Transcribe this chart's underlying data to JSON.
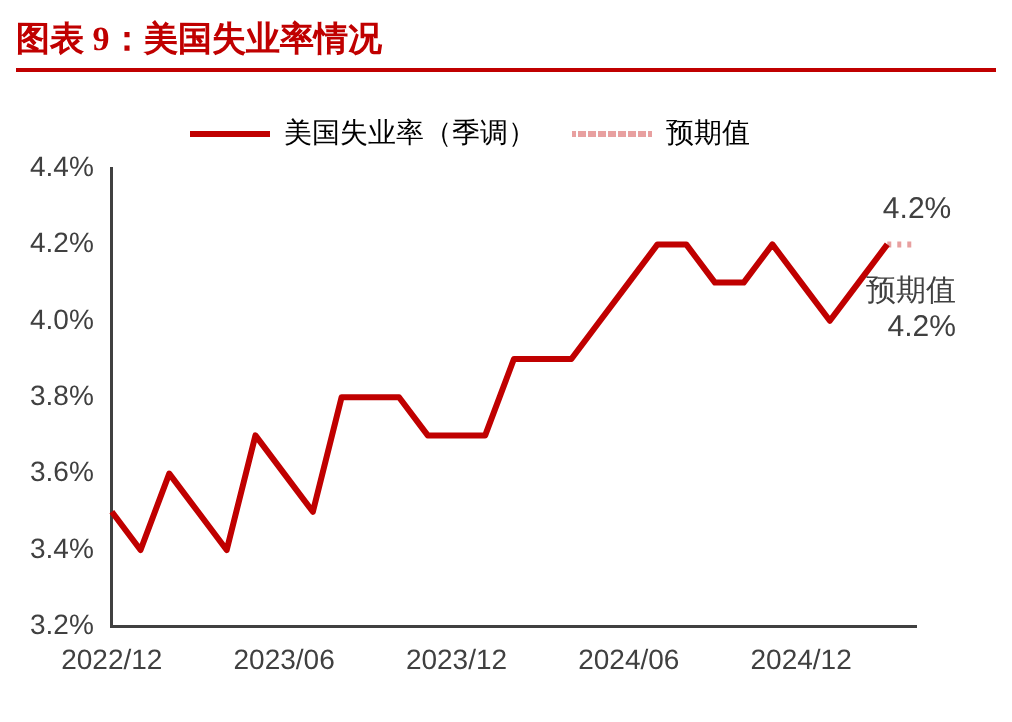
{
  "chart_data": {
    "type": "line",
    "title": "图表 9：美国失业率情况",
    "categories": [
      "2022/12",
      null,
      null,
      null,
      null,
      null,
      "2023/06",
      null,
      null,
      null,
      null,
      null,
      "2023/12",
      null,
      null,
      null,
      null,
      null,
      "2024/06",
      null,
      null,
      null,
      null,
      null,
      "2024/12",
      null,
      null,
      null,
      null
    ],
    "series": [
      {
        "name": "美国失业率（季调）",
        "color": "#c00000",
        "line_style": "solid",
        "values": [
          3.5,
          3.4,
          3.6,
          3.5,
          3.4,
          3.7,
          3.6,
          3.5,
          3.8,
          3.8,
          3.8,
          3.7,
          3.7,
          3.7,
          3.9,
          3.9,
          3.9,
          4.0,
          4.1,
          4.2,
          4.2,
          4.1,
          4.1,
          4.2,
          4.1,
          4.0,
          4.1,
          4.2,
          null
        ],
        "value_labels": [
          null,
          null,
          null,
          null,
          null,
          null,
          null,
          null,
          null,
          null,
          null,
          null,
          null,
          null,
          null,
          null,
          null,
          null,
          null,
          null,
          null,
          null,
          null,
          null,
          null,
          null,
          null,
          "4.2%",
          null
        ]
      },
      {
        "name": "预期值",
        "color": "#e8a0a0",
        "line_style": "dotted",
        "values": [
          null,
          null,
          null,
          null,
          null,
          null,
          null,
          null,
          null,
          null,
          null,
          null,
          null,
          null,
          null,
          null,
          null,
          null,
          null,
          null,
          null,
          null,
          null,
          null,
          null,
          null,
          null,
          4.2,
          4.2
        ],
        "value_labels": [
          null,
          null,
          null,
          null,
          null,
          null,
          null,
          null,
          null,
          null,
          null,
          null,
          null,
          null,
          null,
          null,
          null,
          null,
          null,
          null,
          null,
          null,
          null,
          null,
          null,
          null,
          null,
          null,
          "预期值 4.2%"
        ]
      }
    ],
    "ylim": [
      3.2,
      4.4
    ],
    "yticks": [
      {
        "value": 3.2,
        "label": "3.2%"
      },
      {
        "value": 3.4,
        "label": "3.4%"
      },
      {
        "value": 3.6,
        "label": "3.6%"
      },
      {
        "value": 3.8,
        "label": "3.8%"
      },
      {
        "value": 4.0,
        "label": "4.0%"
      },
      {
        "value": 4.2,
        "label": "4.2%"
      },
      {
        "value": 4.4,
        "label": "4.4%"
      }
    ],
    "grid": false,
    "legend": "top",
    "marker": "none"
  }
}
